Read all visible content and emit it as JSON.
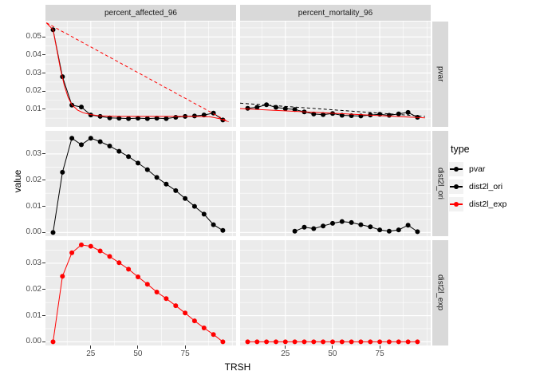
{
  "colors": {
    "background": "#FFFFFF",
    "panel": "#EBEBEB",
    "strip": "#D9D9D9",
    "grid": "#FFFFFF",
    "black_series": "#000000",
    "red_series": "#FF0000",
    "axis_text": "#4D4D4D",
    "legend_key_bg": "#F2F2F2"
  },
  "chart_data": {
    "type": "line",
    "xlabel": "TRSH",
    "ylabel": "value",
    "facets": {
      "columns": [
        "percent_affected_96",
        "percent_mortality_96"
      ],
      "rows": [
        "pvar",
        "dist2l_ori",
        "dist2l_exp"
      ]
    },
    "x_axis": {
      "domain": [
        1,
        102
      ],
      "tick_values": [
        25,
        50,
        75
      ],
      "tick_labels": [
        "25",
        "50",
        "75"
      ],
      "minor": [
        12.5,
        37.5,
        62.5,
        87.5,
        100
      ]
    },
    "row_axes": [
      {
        "domain": [
          0.0002,
          0.0585
        ],
        "tick_values": [
          0.05,
          0.04,
          0.03,
          0.02,
          0.01
        ],
        "tick_labels": [
          "0.05",
          "0.04",
          "0.03",
          "0.02",
          "0.01"
        ],
        "minor": [
          0.005,
          0.015,
          0.025,
          0.035,
          0.045,
          0.055
        ]
      },
      {
        "domain": [
          -0.0014,
          0.0388
        ],
        "tick_values": [
          0.03,
          0.02,
          0.01,
          0.0
        ],
        "tick_labels": [
          "0.03",
          "0.02",
          "0.01",
          "0.00"
        ],
        "minor": [
          0.005,
          0.015,
          0.025,
          0.035
        ]
      },
      {
        "domain": [
          -0.0014,
          0.0388
        ],
        "tick_values": [
          0.03,
          0.02,
          0.01,
          0.0
        ],
        "tick_labels": [
          "0.03",
          "0.02",
          "0.01",
          "0.00"
        ],
        "minor": [
          0.005,
          0.015,
          0.025,
          0.035
        ]
      }
    ],
    "legend": {
      "title": "type",
      "entries": [
        {
          "label": "pvar",
          "color": "#000000"
        },
        {
          "label": "dist2l_ori",
          "color": "#000000"
        },
        {
          "label": "dist2l_exp",
          "color": "#FF0000"
        }
      ]
    },
    "panels": [
      {
        "facet_col": "percent_affected_96",
        "facet_row": "pvar",
        "row": 0,
        "col": 0,
        "series": [
          {
            "name": "pvar",
            "kind": "points",
            "color": "#000000",
            "x": [
              5,
              10,
              15,
              20,
              25,
              30,
              35,
              40,
              45,
              50,
              55,
              60,
              65,
              70,
              75,
              80,
              85,
              90,
              95
            ],
            "y": [
              0.054,
              0.028,
              0.0122,
              0.0112,
              0.0068,
              0.006,
              0.0052,
              0.005,
              0.0048,
              0.005,
              0.0048,
              0.005,
              0.0048,
              0.0055,
              0.006,
              0.0062,
              0.0068,
              0.0078,
              0.004
            ]
          },
          {
            "name": "exp-fit",
            "kind": "line",
            "color": "#FF0000",
            "dash": false,
            "pts": [
              [
                1.5,
                0.0578
              ],
              [
                5,
                0.054
              ],
              [
                7,
                0.043
              ],
              [
                9,
                0.032
              ],
              [
                11,
                0.023
              ],
              [
                13,
                0.0165
              ],
              [
                15,
                0.0125
              ],
              [
                18,
                0.0095
              ],
              [
                21,
                0.008
              ],
              [
                25,
                0.007
              ],
              [
                30,
                0.0063
              ],
              [
                40,
                0.006
              ],
              [
                50,
                0.006
              ],
              [
                60,
                0.006
              ],
              [
                70,
                0.006
              ],
              [
                80,
                0.006
              ],
              [
                88,
                0.0058
              ],
              [
                93,
                0.0048
              ],
              [
                97.5,
                0.0032
              ]
            ]
          },
          {
            "name": "linear-ref",
            "kind": "line",
            "color": "#FF0000",
            "dash": true,
            "pts": [
              [
                1.5,
                0.0578
              ],
              [
                98,
                0.003
              ]
            ]
          }
        ]
      },
      {
        "facet_col": "percent_mortality_96",
        "facet_row": "pvar",
        "row": 0,
        "col": 1,
        "series": [
          {
            "name": "pvar",
            "kind": "points",
            "color": "#000000",
            "x": [
              5,
              10,
              15,
              20,
              25,
              30,
              35,
              40,
              45,
              50,
              55,
              60,
              65,
              70,
              75,
              80,
              85,
              90,
              95
            ],
            "y": [
              0.0105,
              0.011,
              0.0125,
              0.011,
              0.0103,
              0.0098,
              0.0085,
              0.0073,
              0.007,
              0.0076,
              0.0066,
              0.0064,
              0.0062,
              0.0068,
              0.0072,
              0.0066,
              0.0074,
              0.0082,
              0.0055
            ]
          },
          {
            "name": "linear-ref",
            "kind": "line",
            "color": "#000000",
            "dash": true,
            "pts": [
              [
                1,
                0.0133
              ],
              [
                99,
                0.006
              ]
            ]
          },
          {
            "name": "exp-fit",
            "kind": "line",
            "color": "#FF0000",
            "dash": false,
            "pts": [
              [
                1,
                0.0103
              ],
              [
                99,
                0.0052
              ]
            ]
          }
        ]
      },
      {
        "facet_col": "percent_affected_96",
        "facet_row": "dist2l_ori",
        "row": 1,
        "col": 0,
        "series": [
          {
            "name": "dist2l_ori",
            "kind": "points",
            "color": "#000000",
            "x": [
              5,
              10,
              15,
              20,
              25,
              30,
              35,
              40,
              45,
              50,
              55,
              60,
              65,
              70,
              75,
              80,
              85,
              90,
              95
            ],
            "y": [
              0.0,
              0.023,
              0.036,
              0.0335,
              0.036,
              0.0347,
              0.033,
              0.031,
              0.029,
              0.0265,
              0.024,
              0.021,
              0.0185,
              0.016,
              0.013,
              0.01,
              0.007,
              0.003,
              0.0008
            ]
          }
        ]
      },
      {
        "facet_col": "percent_mortality_96",
        "facet_row": "dist2l_ori",
        "row": 1,
        "col": 1,
        "series": [
          {
            "name": "dist2l_ori",
            "kind": "points",
            "color": "#000000",
            "x": [
              30,
              35,
              40,
              45,
              50,
              55,
              60,
              65,
              70,
              75,
              80,
              85,
              90,
              95
            ],
            "y": [
              0.0005,
              0.002,
              0.0015,
              0.0025,
              0.0035,
              0.0042,
              0.0038,
              0.003,
              0.0022,
              0.001,
              0.0005,
              0.001,
              0.0028,
              0.0003
            ]
          }
        ]
      },
      {
        "facet_col": "percent_affected_96",
        "facet_row": "dist2l_exp",
        "row": 2,
        "col": 0,
        "series": [
          {
            "name": "dist2l_exp",
            "kind": "points",
            "color": "#FF0000",
            "x": [
              5,
              10,
              15,
              20,
              25,
              30,
              35,
              40,
              45,
              50,
              55,
              60,
              65,
              70,
              75,
              80,
              85,
              90,
              95
            ],
            "y": [
              0.0,
              0.025,
              0.034,
              0.037,
              0.0365,
              0.0347,
              0.0326,
              0.0302,
              0.0277,
              0.0248,
              0.022,
              0.019,
              0.0165,
              0.0138,
              0.011,
              0.008,
              0.0053,
              0.0028,
              0.0
            ]
          }
        ]
      },
      {
        "facet_col": "percent_mortality_96",
        "facet_row": "dist2l_exp",
        "row": 2,
        "col": 1,
        "series": [
          {
            "name": "dist2l_exp",
            "kind": "points",
            "color": "#FF0000",
            "x": [
              5,
              10,
              15,
              20,
              25,
              30,
              35,
              40,
              45,
              50,
              55,
              60,
              65,
              70,
              75,
              80,
              85,
              90,
              95
            ],
            "y": [
              0.0,
              0.0,
              0.0,
              0.0,
              0.0,
              0.0,
              0.0,
              0.0,
              0.0,
              0.0,
              0.0,
              0.0,
              0.0,
              0.0,
              0.0,
              0.0,
              0.0,
              0.0,
              0.0
            ]
          }
        ]
      }
    ]
  }
}
